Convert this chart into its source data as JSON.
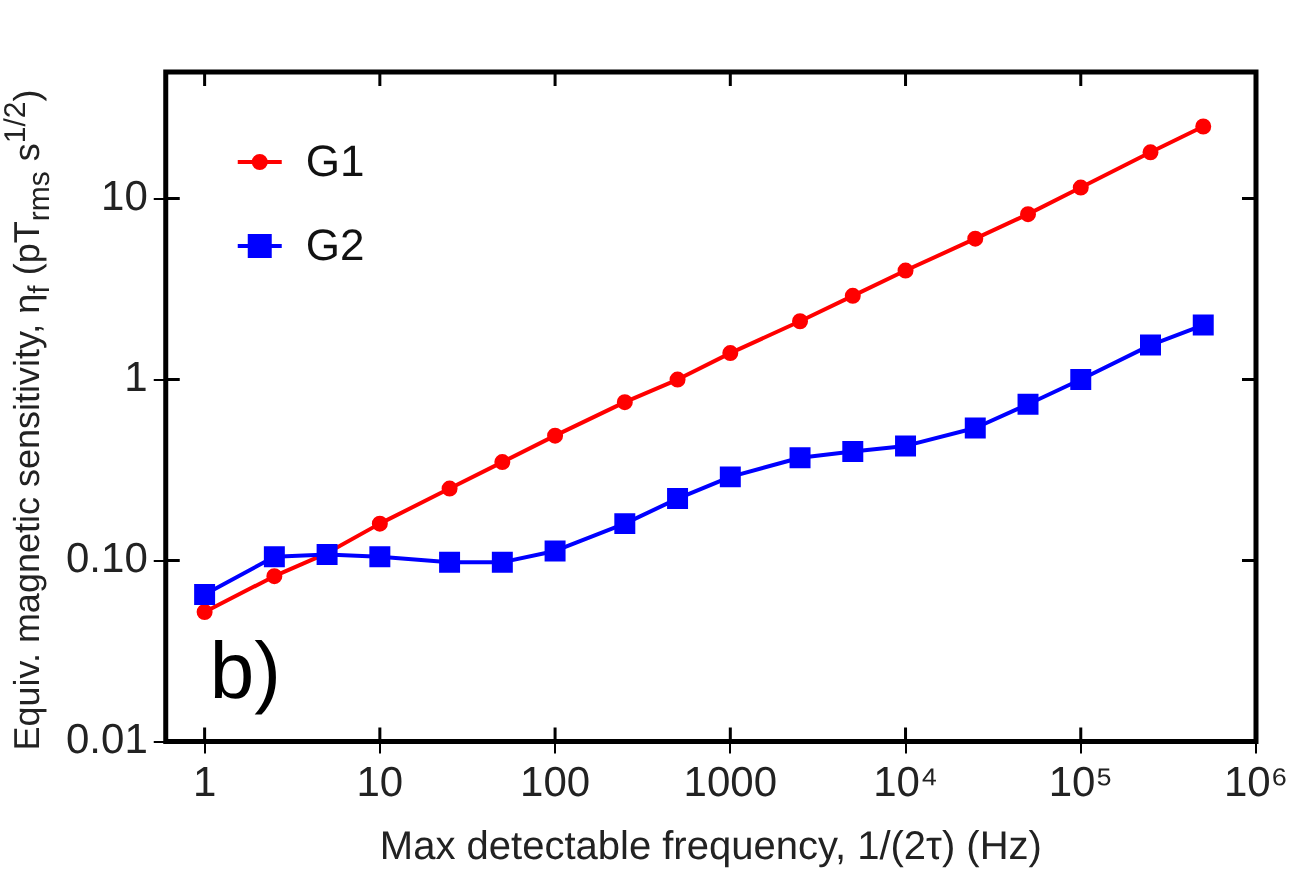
{
  "chart_data": {
    "type": "line",
    "xlabel": "Max detectable frequency, 1/(2τ) (Hz)",
    "ylabel": "Equiv. magnetic sensitivity, η$_{f}$ (pT$_{rms}$ s$^{1/2}$)",
    "log": "xy",
    "grid": false,
    "legend": "top left",
    "line_style": "solid",
    "annotations": [
      "b)"
    ],
    "x": [
      1,
      2.5,
      5,
      10,
      25,
      50,
      100,
      250,
      500,
      1000,
      2500,
      5000,
      10000,
      25000,
      50000,
      100000,
      250000,
      500000
    ],
    "xlim": [
      0.6,
      1000000
    ],
    "xticks": [
      1,
      10,
      100,
      1000,
      {
        "value": 10000,
        "label": "10⁴"
      },
      {
        "value": 100000,
        "label": "10⁵"
      },
      {
        "value": 1000000,
        "label": "10⁶"
      }
    ],
    "ylim": [
      0.01,
      50
    ],
    "yticks": [
      0.01,
      {
        "value": 0.1,
        "label": "0.10"
      },
      1,
      10
    ],
    "series": [
      {
        "name": "G1",
        "color": "#ff0000",
        "marker": "circle",
        "values": [
          0.052,
          0.082,
          0.11,
          0.16,
          0.25,
          0.35,
          0.49,
          0.75,
          1.0,
          1.4,
          2.1,
          2.9,
          4.0,
          6.0,
          8.2,
          11.5,
          18,
          25
        ]
      },
      {
        "name": "G2",
        "color": "#0000ff",
        "marker": "square",
        "values": [
          0.065,
          0.105,
          0.108,
          0.105,
          0.098,
          0.098,
          0.113,
          0.16,
          0.22,
          0.29,
          0.37,
          0.4,
          0.43,
          0.54,
          0.73,
          1.0,
          1.55,
          2.0
        ]
      }
    ]
  }
}
